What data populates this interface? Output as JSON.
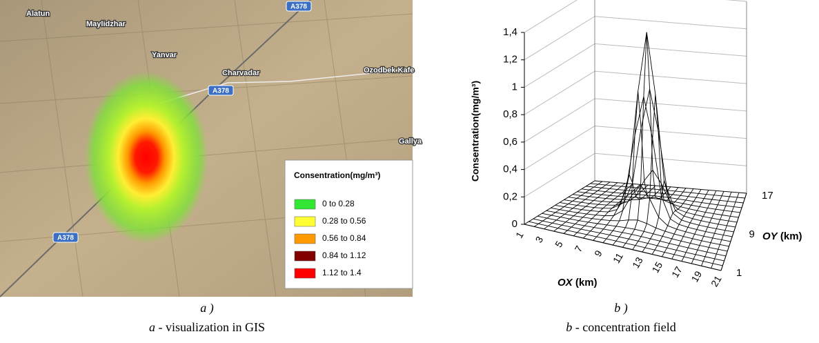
{
  "panel_a": {
    "map_labels": [
      "Alatun",
      "Maylidzhar",
      "Yanvar",
      "Charvadar",
      "Ozodbek Kafe",
      "Gallya"
    ],
    "road_labels": [
      "A378",
      "A378",
      "A378"
    ],
    "legend": {
      "title": "Consentration(mg/m³)",
      "items": [
        {
          "label": "0 to 0.28",
          "color": "#33e633"
        },
        {
          "label": "0.28 to 0.56",
          "color": "#ffff33"
        },
        {
          "label": "0.56 to 0.84",
          "color": "#ff9900"
        },
        {
          "label": "0.84 to 1.12",
          "color": "#800000"
        },
        {
          "label": "1.12 to 1.4",
          "color": "#ff0000"
        }
      ]
    },
    "tag": "a )",
    "caption_letter": "a",
    "caption": " - visualization in GIS"
  },
  "panel_b": {
    "z_axis_label": "Consentration(mg/m³)",
    "zticks": [
      "1,4",
      "1,2",
      "1",
      "0,8",
      "0,6",
      "0,4",
      "0,2",
      "0"
    ],
    "xticks": [
      "1",
      "3",
      "5",
      "7",
      "9",
      "11",
      "13",
      "15",
      "17",
      "19",
      "21"
    ],
    "yticks": [
      "17",
      "9",
      "1"
    ],
    "x_axis_name": "OX",
    "x_axis_unit": "(km)",
    "y_axis_name": "OY",
    "y_axis_unit": "(km)",
    "tag": "b )",
    "caption_letter": "b",
    "caption": " - concentration field"
  }
}
